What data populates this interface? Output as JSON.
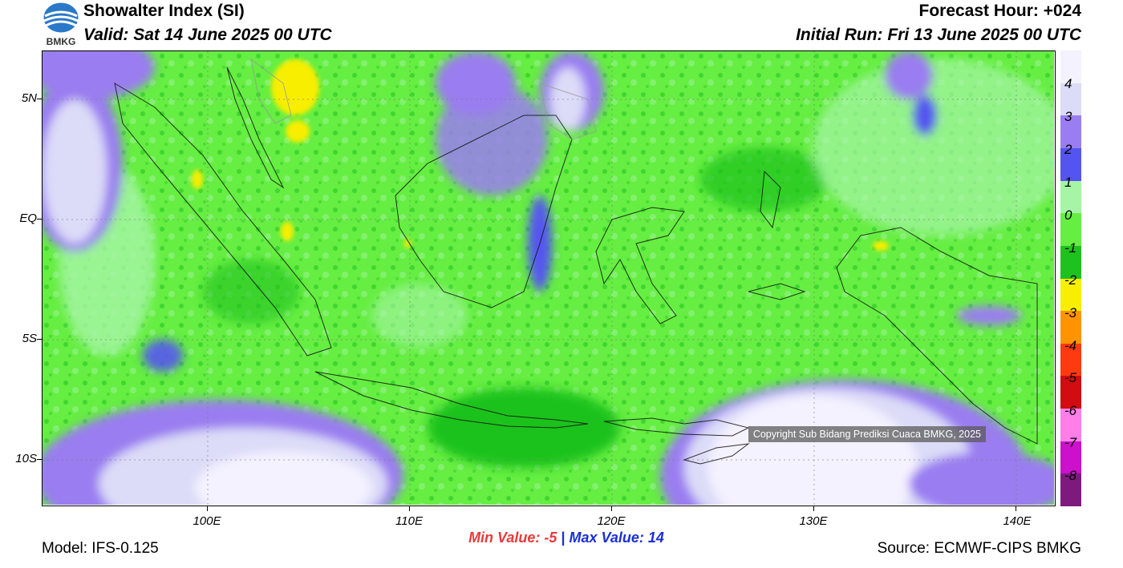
{
  "header": {
    "title": "Showalter Index (SI)",
    "valid": "Valid: Sat 14 June 2025 00 UTC",
    "forecast_hour": "Forecast Hour: +024",
    "initial_run": "Initial Run: Fri 13 June 2025 00 UTC",
    "logo_text": "BMKG"
  },
  "map": {
    "y_labels": [
      "5N",
      "EQ",
      "5S",
      "10S"
    ],
    "x_labels": [
      "100E",
      "110E",
      "120E",
      "130E",
      "140E"
    ],
    "copyright": "Copyright Sub Bidang Prediksi Cuaca BMKG, 2025"
  },
  "colorbar": {
    "labels": [
      "4",
      "3",
      "2",
      "1",
      "0",
      "-1",
      "-2",
      "-3",
      "-4",
      "-5",
      "-6",
      "-7",
      "-8"
    ],
    "colors": [
      "#f5f2ff",
      "#dcdcf8",
      "#9a7df0",
      "#5454f0",
      "#a6f5a6",
      "#66ee42",
      "#1ec21e",
      "#f7ee00",
      "#ff9400",
      "#ff3a10",
      "#d20c10",
      "#ff7ee8",
      "#cc10cc",
      "#7e1a7e"
    ]
  },
  "stats": {
    "min_label": "Min Value:",
    "min_value": "-5",
    "separator": "|",
    "max_label": "Max Value:",
    "max_value": "14"
  },
  "footer": {
    "model": "Model: IFS-0.125",
    "source": "Source: ECMWF-CIPS BMKG"
  }
}
